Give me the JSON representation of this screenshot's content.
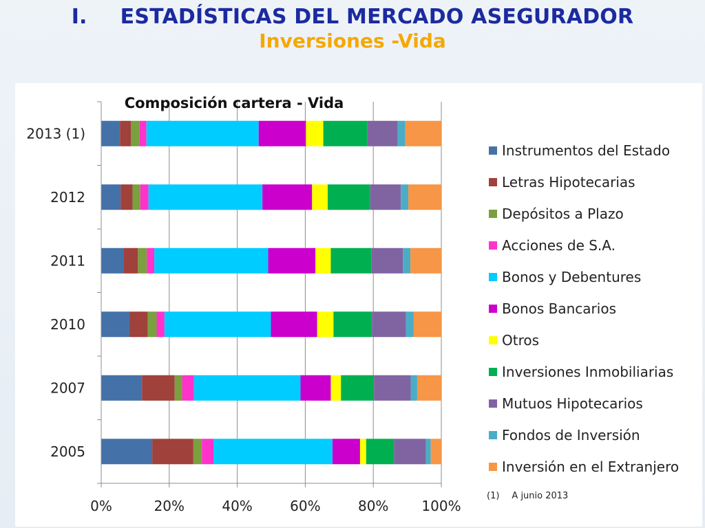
{
  "slide": {
    "title_number": "I.",
    "title": "ESTADÍSTICAS DEL MERCADO ASEGURADOR",
    "subtitle": "Inversiones -Vida"
  },
  "footnote": {
    "mark": "(1)",
    "text": "A junio 2013"
  },
  "chart_data": {
    "type": "bar",
    "orientation": "horizontal",
    "stacked": "percent",
    "title": "Composición cartera - Vida",
    "xlabel": "",
    "ylabel": "",
    "xlim": [
      0,
      100
    ],
    "x_ticks": [
      "0%",
      "20%",
      "40%",
      "60%",
      "80%",
      "100%"
    ],
    "grid": true,
    "legend_position": "right",
    "categories": [
      "2013 (1)",
      "2012",
      "2011",
      "2010",
      "2007",
      "2005"
    ],
    "series": [
      {
        "name": "Instrumentos del Estado",
        "color": "#4472a8",
        "values": [
          5.5,
          5.7,
          6.5,
          8.4,
          12.0,
          15.0
        ]
      },
      {
        "name": "Letras Hipotecarias",
        "color": "#a0413c",
        "values": [
          3.2,
          3.5,
          4.3,
          5.3,
          9.6,
          12.1
        ]
      },
      {
        "name": "Depósitos a Plazo",
        "color": "#7aa03f",
        "values": [
          2.6,
          2.3,
          2.6,
          2.6,
          2.2,
          2.5
        ]
      },
      {
        "name": "Acciones de S.A.",
        "color": "#ff33cc",
        "values": [
          2.0,
          2.4,
          2.2,
          2.3,
          3.5,
          3.4
        ]
      },
      {
        "name": "Bonos y Debentures",
        "color": "#00ccff",
        "values": [
          33.0,
          33.5,
          33.5,
          31.3,
          31.3,
          35.0
        ]
      },
      {
        "name": "Bonos Bancarios",
        "color": "#cc00cc",
        "values": [
          13.9,
          14.6,
          13.9,
          13.6,
          8.9,
          8.1
        ]
      },
      {
        "name": "Otros",
        "color": "#ffff00",
        "values": [
          5.1,
          4.6,
          4.5,
          4.8,
          3.0,
          1.8
        ]
      },
      {
        "name": "Inversiones Inmobiliarias",
        "color": "#00b050",
        "values": [
          13.0,
          12.5,
          11.9,
          11.3,
          9.7,
          8.2
        ]
      },
      {
        "name": "Mutuos Hipotecarios",
        "color": "#8064a2",
        "values": [
          8.9,
          9.0,
          9.3,
          10.0,
          10.8,
          9.4
        ]
      },
      {
        "name": "Fondos de Inversión",
        "color": "#4bacc6",
        "values": [
          2.2,
          2.2,
          2.2,
          2.2,
          1.9,
          1.4
        ]
      },
      {
        "name": "Inversión en el Extranjero",
        "color": "#f79646",
        "values": [
          10.6,
          9.7,
          9.1,
          8.2,
          7.1,
          3.1
        ]
      }
    ]
  }
}
